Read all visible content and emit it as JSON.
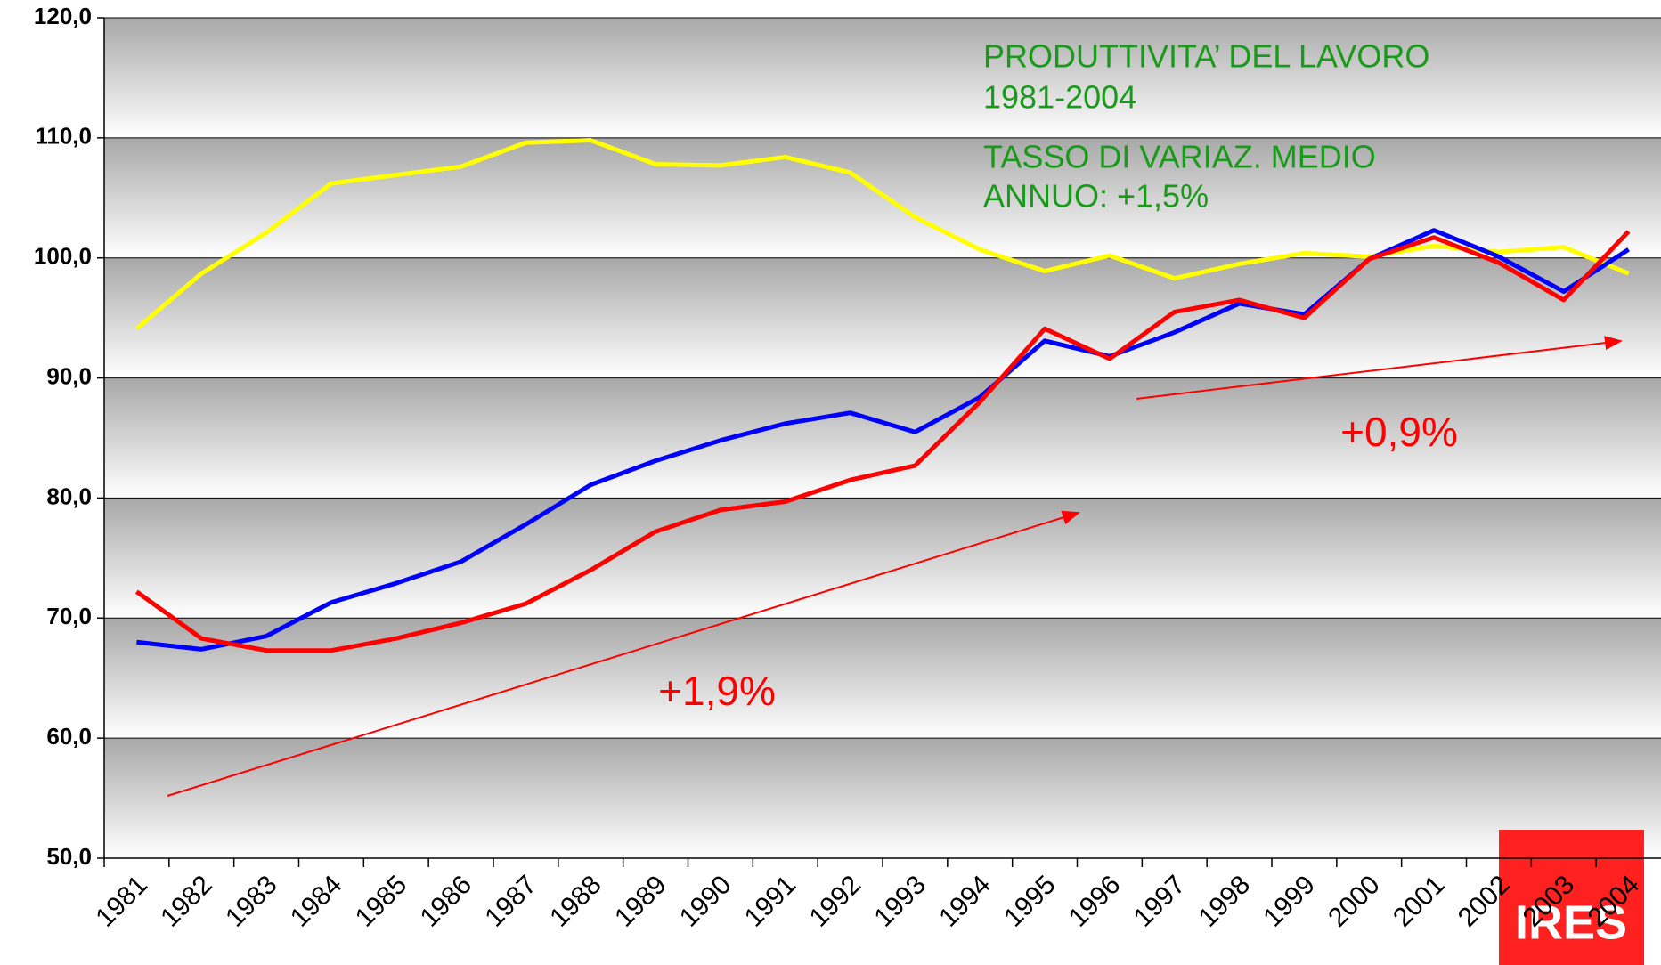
{
  "chart_data": {
    "type": "line",
    "annotations": [
      "PRODUTTIVITA’ DEL LAVORO",
      "1981-2004",
      "TASSO DI VARIAZ. MEDIO",
      "ANNUO: +1,5%",
      "+1,9%",
      "+0,9%"
    ],
    "logo": "IRES",
    "categories": [
      "1981",
      "1982",
      "1983",
      "1984",
      "1985",
      "1986",
      "1987",
      "1988",
      "1989",
      "1990",
      "1991",
      "1992",
      "1993",
      "1994",
      "1995",
      "1996",
      "1997",
      "1998",
      "1999",
      "2000",
      "2001",
      "2002",
      "2003",
      "2004"
    ],
    "series": [
      {
        "color": "#ffff00",
        "values": [
          94.1,
          98.7,
          102.1,
          106.2,
          106.9,
          107.6,
          109.6,
          109.8,
          107.8,
          107.7,
          108.4,
          107.1,
          103.4,
          100.7,
          98.9,
          100.2,
          98.3,
          99.5,
          100.4,
          100.1,
          101.0,
          100.5,
          100.9,
          98.7
        ]
      },
      {
        "color": "#0000ff",
        "values": [
          68.0,
          67.4,
          68.5,
          71.3,
          72.9,
          74.7,
          77.8,
          81.1,
          83.1,
          84.8,
          86.2,
          87.1,
          85.5,
          88.4,
          93.1,
          91.8,
          93.8,
          96.2,
          95.3,
          99.9,
          102.3,
          100.1,
          97.2,
          100.7
        ]
      },
      {
        "color": "#ff0000",
        "values": [
          72.2,
          68.3,
          67.3,
          67.3,
          68.3,
          69.6,
          71.2,
          74.0,
          77.2,
          79.0,
          79.7,
          81.5,
          82.7,
          88.0,
          94.1,
          91.6,
          95.5,
          96.5,
          95.0,
          99.9,
          101.7,
          99.6,
          96.5,
          102.2
        ]
      }
    ],
    "ylim": [
      50,
      120
    ],
    "yticks": [
      {
        "value": 50,
        "label": "50,0"
      },
      {
        "value": 60,
        "label": "60,0"
      },
      {
        "value": 70,
        "label": "70,0"
      },
      {
        "value": 80,
        "label": "80,0"
      },
      {
        "value": 90,
        "label": "90,0"
      },
      {
        "value": 100,
        "label": "100,0"
      },
      {
        "value": 110,
        "label": "110,0"
      },
      {
        "value": 120,
        "label": "120,0"
      }
    ],
    "grid": true
  }
}
